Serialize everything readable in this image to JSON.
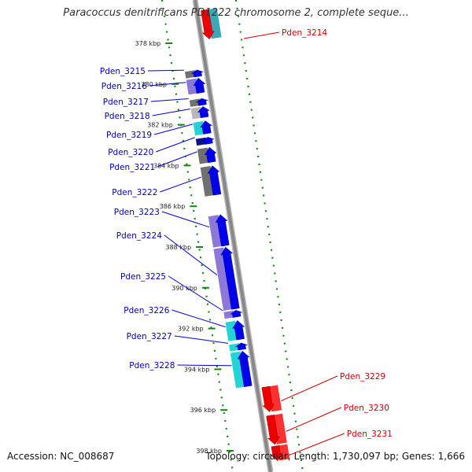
{
  "title": "Paracoccus denitrificans PD1222 chromosome 2, complete seque...",
  "accession": "Accession: NC_008687",
  "topology": "Topology: circular; Length: 1,730,097 bp; Genes: 1,666",
  "colors": {
    "forward_arrow": "#0000ee",
    "reverse_arrow": "#ee0000",
    "backbone": "#888888",
    "tick": "#118811",
    "forward_label": "#0000aa",
    "reverse_label": "#cc0000"
  },
  "ticks": [
    {
      "label": "378 kbp",
      "kbp": 378
    },
    {
      "label": "380 kbp",
      "kbp": 380
    },
    {
      "label": "382 kbp",
      "kbp": 382
    },
    {
      "label": "384 kbp",
      "kbp": 384
    },
    {
      "label": "386 kbp",
      "kbp": 386
    },
    {
      "label": "388 kbp",
      "kbp": 388
    },
    {
      "label": "390 kbp",
      "kbp": 390
    },
    {
      "label": "392 kbp",
      "kbp": 392
    },
    {
      "label": "394 kbp",
      "kbp": 394
    },
    {
      "label": "396 kbp",
      "kbp": 396
    },
    {
      "label": "398 kbp",
      "kbp": 398
    }
  ],
  "genes": [
    {
      "name": "Pden_3214",
      "strand": "-",
      "start_kbp": 376.4,
      "end_kbp": 377.9,
      "cog": "#3aa8b8"
    },
    {
      "name": "Pden_3215",
      "strand": "+",
      "start_kbp": 379.2,
      "end_kbp": 379.6,
      "cog": "#707070"
    },
    {
      "name": "Pden_3216",
      "strand": "+",
      "start_kbp": 379.6,
      "end_kbp": 380.4,
      "cog": "#8c78d8"
    },
    {
      "name": "Pden_3217",
      "strand": "+",
      "start_kbp": 380.6,
      "end_kbp": 381.0,
      "cog": "#707070"
    },
    {
      "name": "Pden_3218",
      "strand": "+",
      "start_kbp": 381.0,
      "end_kbp": 381.6,
      "cog": "#b8b8b8"
    },
    {
      "name": "Pden_3219",
      "strand": "+",
      "start_kbp": 381.7,
      "end_kbp": 382.4,
      "cog": "#22d4d4"
    },
    {
      "name": "Pden_3220",
      "strand": "+",
      "start_kbp": 382.5,
      "end_kbp": 382.9,
      "cog": "#101088"
    },
    {
      "name": "Pden_3221",
      "strand": "+",
      "start_kbp": 383.0,
      "end_kbp": 383.8,
      "cog": "#707070"
    },
    {
      "name": "Pden_3222",
      "strand": "+",
      "start_kbp": 383.9,
      "end_kbp": 385.4,
      "cog": "#707070"
    },
    {
      "name": "Pden_3223",
      "strand": "+",
      "start_kbp": 386.3,
      "end_kbp": 387.9,
      "cog": "#8c78d8"
    },
    {
      "name": "Pden_3224",
      "strand": "+",
      "start_kbp": 387.9,
      "end_kbp": 391.0,
      "cog": "#8c78d8"
    },
    {
      "name": "Pden_3225",
      "strand": "+",
      "start_kbp": 391.0,
      "end_kbp": 391.4,
      "cog": "#8c78d8"
    },
    {
      "name": "Pden_3226",
      "strand": "+",
      "start_kbp": 391.5,
      "end_kbp": 392.5,
      "cog": "#22d4d4"
    },
    {
      "name": "Pden_3227",
      "strand": "+",
      "start_kbp": 392.6,
      "end_kbp": 393.0,
      "cog": "#22d4d4"
    },
    {
      "name": "Pden_3228",
      "strand": "+",
      "start_kbp": 393.0,
      "end_kbp": 394.8,
      "cog": "#22d4d4"
    },
    {
      "name": "Pden_3229",
      "strand": "-",
      "start_kbp": 394.9,
      "end_kbp": 396.2,
      "cog": "#ff3030"
    },
    {
      "name": "Pden_3230",
      "strand": "-",
      "start_kbp": 396.3,
      "end_kbp": 397.8,
      "cog": "#ff3030"
    },
    {
      "name": "Pden_3231",
      "strand": "-",
      "start_kbp": 397.8,
      "end_kbp": 398.6,
      "cog": "#ff3030"
    }
  ]
}
